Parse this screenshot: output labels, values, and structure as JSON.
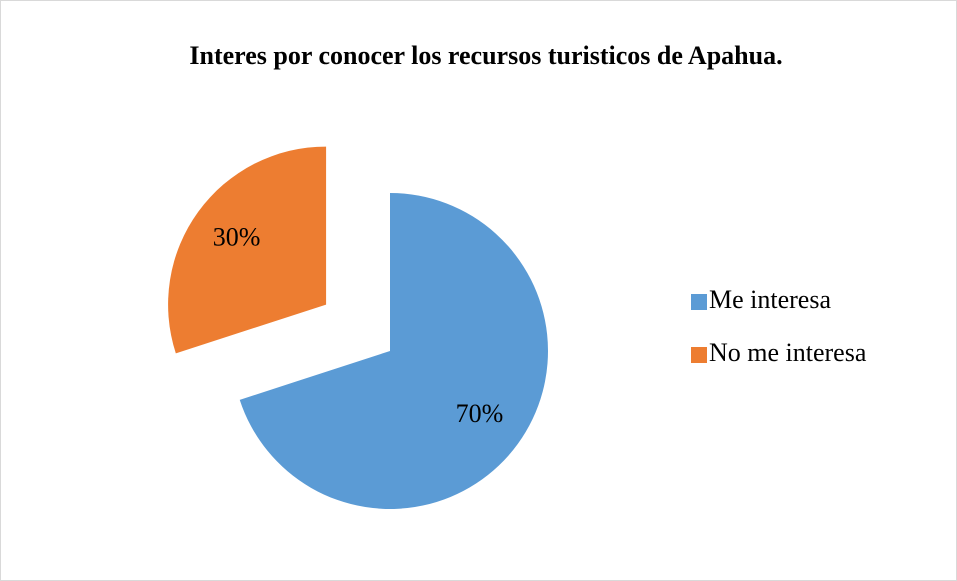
{
  "chart_data": {
    "type": "pie",
    "title": "Interes por conocer los recursos turisticos de Apahua.",
    "categories": [
      "Me interesa",
      "No me interesa"
    ],
    "values": [
      70,
      30
    ],
    "value_labels": [
      "70%",
      "30%"
    ],
    "colors": [
      "#5b9bd5",
      "#ed7d31"
    ],
    "explode": [
      false,
      true
    ],
    "legend": "right"
  }
}
